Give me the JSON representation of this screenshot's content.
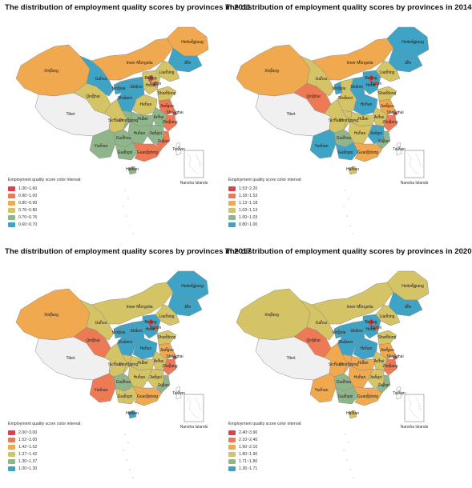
{
  "panels": [
    {
      "title": "The distribution of employment quality scores by provinces in 2011",
      "legend_title": "Employment quality score color interval:",
      "legend": [
        {
          "label": "1.00~1.60",
          "color": "#d9434b"
        },
        {
          "label": "0.90~1.00",
          "color": "#ee7a55"
        },
        {
          "label": "0.80~0.90",
          "color": "#f0a94f"
        },
        {
          "label": "0.76~0.80",
          "color": "#d4c466"
        },
        {
          "label": "0.70~0.76",
          "color": "#8fb68a"
        },
        {
          "label": "0.60~0.70",
          "color": "#3ea3c4"
        }
      ],
      "regions": {
        "heilongjiang": 2,
        "jilin": 5,
        "liaoning": 3,
        "innermongolia": 2,
        "xinjiang": 2,
        "qinghai": 3,
        "gansu": 5,
        "ningxia": 5,
        "shaanxi": 5,
        "shanxi": 5,
        "hebei": 3,
        "beijing": 0,
        "tianjin": 1,
        "shandong": 3,
        "henan": 3,
        "jiangsu": 1,
        "anhui": 4,
        "sichuan": 3,
        "chongqing": 4,
        "hubei": 4,
        "hunan": 4,
        "jiangxi": 4,
        "zhejiang": 1,
        "fujian": 1,
        "yunnan": 4,
        "guizhou": 4,
        "guangxi": 4,
        "guangdong": 1,
        "hainan": 4,
        "shanghai": 0,
        "taiwan": 6,
        "tibet": 6
      }
    },
    {
      "title": "The distribution of employment quality scores by provinces in 2014",
      "legend_title": "Employment quality score color interval:",
      "legend": [
        {
          "label": "1.53~2.20",
          "color": "#d9434b"
        },
        {
          "label": "1.18~1.53",
          "color": "#ee7a55"
        },
        {
          "label": "1.13~1.18",
          "color": "#f0a94f"
        },
        {
          "label": "1.03~1.13",
          "color": "#d4c466"
        },
        {
          "label": "1.00~1.03",
          "color": "#8fb68a"
        },
        {
          "label": "0.80~1.00",
          "color": "#3ea3c4"
        }
      ],
      "regions": {
        "heilongjiang": 5,
        "jilin": 5,
        "liaoning": 3,
        "innermongolia": 2,
        "xinjiang": 2,
        "qinghai": 1,
        "gansu": 3,
        "ningxia": 5,
        "shaanxi": 3,
        "shanxi": 5,
        "hebei": 5,
        "beijing": 0,
        "tianjin": 1,
        "shandong": 3,
        "henan": 5,
        "jiangsu": 2,
        "anhui": 3,
        "sichuan": 3,
        "chongqing": 3,
        "hubei": 3,
        "hunan": 3,
        "jiangxi": 5,
        "zhejiang": 1,
        "fujian": 4,
        "yunnan": 5,
        "guizhou": 4,
        "guangxi": 5,
        "guangdong": 2,
        "hainan": 3,
        "shanghai": 0,
        "taiwan": 6,
        "tibet": 6
      }
    },
    {
      "title": "The distribution of employment quality scores by provinces in 2017",
      "legend_title": "Employment quality score color interval:",
      "legend": [
        {
          "label": "2.00~3.00",
          "color": "#d9434b"
        },
        {
          "label": "1.52~2.00",
          "color": "#ee7a55"
        },
        {
          "label": "1.42~1.52",
          "color": "#f0a94f"
        },
        {
          "label": "1.37~1.42",
          "color": "#d4c466"
        },
        {
          "label": "1.30~1.37",
          "color": "#8fb68a"
        },
        {
          "label": "1.00~1.30",
          "color": "#3ea3c4"
        }
      ],
      "regions": {
        "heilongjiang": 5,
        "jilin": 5,
        "liaoning": 3,
        "innermongolia": 3,
        "xinjiang": 2,
        "qinghai": 1,
        "gansu": 3,
        "ningxia": 5,
        "shaanxi": 5,
        "shanxi": 5,
        "hebei": 5,
        "beijing": 0,
        "tianjin": 1,
        "shandong": 3,
        "henan": 5,
        "jiangsu": 2,
        "anhui": 3,
        "sichuan": 3,
        "chongqing": 3,
        "hubei": 3,
        "hunan": 3,
        "jiangxi": 3,
        "zhejiang": 1,
        "fujian": 4,
        "yunnan": 1,
        "guizhou": 4,
        "guangxi": 3,
        "guangdong": 2,
        "hainan": 5,
        "shanghai": 0,
        "taiwan": 6,
        "tibet": 6
      }
    },
    {
      "title": "The distribution of employment quality scores by provinces in 2020",
      "legend_title": "Employment quality score color interval:",
      "legend": [
        {
          "label": "2.40~3.90",
          "color": "#d9434b"
        },
        {
          "label": "2.10~2.40",
          "color": "#ee7a55"
        },
        {
          "label": "1.90~2.10",
          "color": "#f0a94f"
        },
        {
          "label": "1.80~1.90",
          "color": "#d4c466"
        },
        {
          "label": "1.71~1.80",
          "color": "#8fb68a"
        },
        {
          "label": "1.36~1.71",
          "color": "#3ea3c4"
        }
      ],
      "regions": {
        "heilongjiang": 3,
        "jilin": 5,
        "liaoning": 3,
        "innermongolia": 3,
        "xinjiang": 3,
        "qinghai": 1,
        "gansu": 3,
        "ningxia": 5,
        "shaanxi": 5,
        "shanxi": 5,
        "hebei": 5,
        "beijing": 0,
        "tianjin": 1,
        "shandong": 3,
        "henan": 5,
        "jiangsu": 2,
        "anhui": 3,
        "sichuan": 2,
        "chongqing": 2,
        "hubei": 2,
        "hunan": 2,
        "jiangxi": 3,
        "zhejiang": 1,
        "fujian": 4,
        "yunnan": 2,
        "guizhou": 4,
        "guangxi": 4,
        "guangdong": 2,
        "hainan": 3,
        "shanghai": 0,
        "taiwan": 6,
        "tibet": 6
      }
    }
  ],
  "labels": {
    "heilongjiang": "Heilongjiang",
    "jilin": "Jilin",
    "liaoning": "Liaoning",
    "innermongolia": "Inner Mongolia",
    "xinjiang": "Xinjiang",
    "qinghai": "Qinghai",
    "gansu": "Gansu",
    "ningxia": "Ningxia",
    "shaanxi": "Shaanxi",
    "shanxi": "Shanxi",
    "hebei": "Hebei",
    "beijing": "Beijing",
    "tianjin": "Tianjin",
    "shandong": "Shandong",
    "henan": "Henan",
    "jiangsu": "Jiangsu",
    "anhui": "Anhui",
    "sichuan": "Sichuan",
    "chongqing": "Chongqing",
    "hubei": "Hubei",
    "hunan": "Hunan",
    "jiangxi": "Jiangxi",
    "zhejiang": "Zhejiang",
    "fujian": "Fujian",
    "yunnan": "Yunnan",
    "guizhou": "Guizhou",
    "guangxi": "Guangxi",
    "guangdong": "Guangdong",
    "hainan": "Hainan",
    "shanghai": "Shanghai",
    "taiwan": "Taiwan",
    "tibet": "Tibet",
    "nansha": "Nansha Islands"
  },
  "colors": {
    "no_data": "#ffffff",
    "tibet": "#f0f0f0",
    "border": "#8a8a8a"
  }
}
